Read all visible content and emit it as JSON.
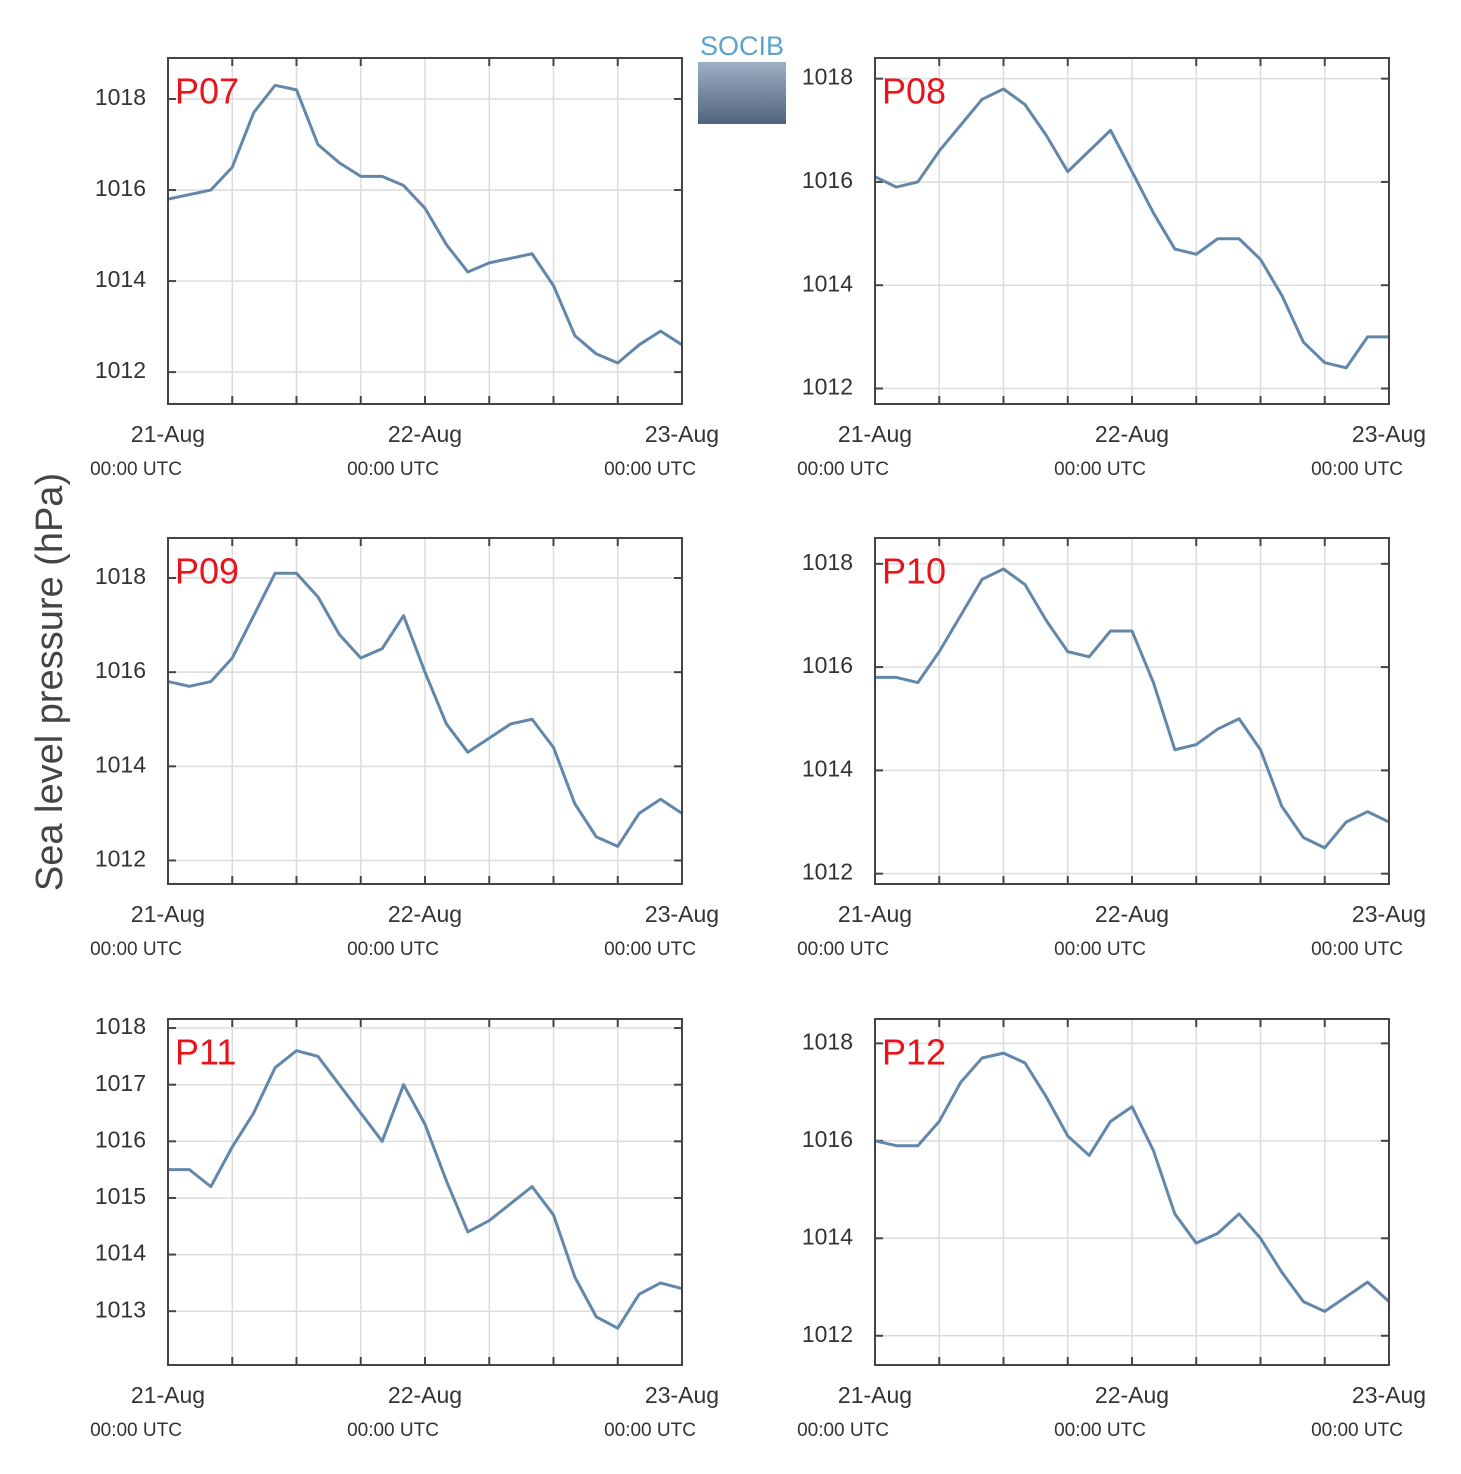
{
  "logo": "SOCIB",
  "chart_data": [
    {
      "type": "line",
      "title": "P07",
      "color": "#6387ab",
      "title_color": "#e8141c",
      "grid": true,
      "x": [
        "21-Aug 00:00",
        "21-Aug 02:00",
        "21-Aug 04:00",
        "21-Aug 06:00",
        "21-Aug 08:00",
        "21-Aug 10:00",
        "21-Aug 12:00",
        "21-Aug 14:00",
        "21-Aug 16:00",
        "21-Aug 18:00",
        "21-Aug 20:00",
        "21-Aug 22:00",
        "22-Aug 00:00",
        "22-Aug 02:00",
        "22-Aug 04:00",
        "22-Aug 06:00",
        "22-Aug 08:00",
        "22-Aug 10:00",
        "22-Aug 12:00",
        "22-Aug 14:00",
        "22-Aug 16:00",
        "22-Aug 18:00",
        "22-Aug 20:00",
        "22-Aug 22:00",
        "23-Aug 00:00"
      ],
      "values": [
        1015.8,
        1015.9,
        1016.0,
        1016.5,
        1017.7,
        1018.3,
        1018.2,
        1017.0,
        1016.6,
        1016.3,
        1016.3,
        1016.1,
        1015.6,
        1014.8,
        1014.2,
        1014.4,
        1014.5,
        1014.6,
        1013.9,
        1012.8,
        1012.4,
        1012.2,
        1012.6,
        1012.9,
        1012.6
      ],
      "xlim": [
        "21-Aug 00:00",
        "23-Aug 00:00"
      ],
      "xticks": [
        {
          "value": "21-Aug 00:00",
          "label": "21-Aug",
          "sublabel": "00:00 UTC"
        },
        {
          "value": "22-Aug 00:00",
          "label": "22-Aug",
          "sublabel": "00:00 UTC"
        },
        {
          "value": "23-Aug 00:00",
          "label": "23-Aug",
          "sublabel": "00:00 UTC"
        }
      ],
      "xminorticks": [
        "21-Aug 06:00",
        "21-Aug 12:00",
        "21-Aug 18:00",
        "22-Aug 06:00",
        "22-Aug 12:00",
        "22-Aug 18:00"
      ],
      "ylim": [
        1011.3,
        1018.9
      ],
      "yticks": [
        1012,
        1014,
        1016,
        1018
      ]
    },
    {
      "type": "line",
      "title": "P08",
      "color": "#6387ab",
      "title_color": "#e8141c",
      "grid": true,
      "x": [
        "21-Aug 00:00",
        "21-Aug 02:00",
        "21-Aug 04:00",
        "21-Aug 06:00",
        "21-Aug 08:00",
        "21-Aug 10:00",
        "21-Aug 12:00",
        "21-Aug 14:00",
        "21-Aug 16:00",
        "21-Aug 18:00",
        "21-Aug 20:00",
        "21-Aug 22:00",
        "22-Aug 00:00",
        "22-Aug 02:00",
        "22-Aug 04:00",
        "22-Aug 06:00",
        "22-Aug 08:00",
        "22-Aug 10:00",
        "22-Aug 12:00",
        "22-Aug 14:00",
        "22-Aug 16:00",
        "22-Aug 18:00",
        "22-Aug 20:00",
        "22-Aug 22:00",
        "23-Aug 00:00"
      ],
      "values": [
        1016.1,
        1015.9,
        1016.0,
        1016.6,
        1017.1,
        1017.6,
        1017.8,
        1017.5,
        1016.9,
        1016.2,
        1016.6,
        1017.0,
        1016.2,
        1015.4,
        1014.7,
        1014.6,
        1014.9,
        1014.9,
        1014.5,
        1013.8,
        1012.9,
        1012.5,
        1012.4,
        1013.0,
        1013.0
      ],
      "xlim": [
        "21-Aug 00:00",
        "23-Aug 00:00"
      ],
      "xticks": [
        {
          "value": "21-Aug 00:00",
          "label": "21-Aug",
          "sublabel": "00:00 UTC"
        },
        {
          "value": "22-Aug 00:00",
          "label": "22-Aug",
          "sublabel": "00:00 UTC"
        },
        {
          "value": "23-Aug 00:00",
          "label": "23-Aug",
          "sublabel": "00:00 UTC"
        }
      ],
      "xminorticks": [
        "21-Aug 06:00",
        "21-Aug 12:00",
        "21-Aug 18:00",
        "22-Aug 06:00",
        "22-Aug 12:00",
        "22-Aug 18:00"
      ],
      "ylim": [
        1011.7,
        1018.4
      ],
      "yticks": [
        1012,
        1014,
        1016,
        1018
      ]
    },
    {
      "type": "line",
      "title": "P09",
      "color": "#6387ab",
      "title_color": "#e8141c",
      "grid": true,
      "ylabel": "Sea level pressure (hPa)",
      "x": [
        "21-Aug 00:00",
        "21-Aug 02:00",
        "21-Aug 04:00",
        "21-Aug 06:00",
        "21-Aug 08:00",
        "21-Aug 10:00",
        "21-Aug 12:00",
        "21-Aug 14:00",
        "21-Aug 16:00",
        "21-Aug 18:00",
        "21-Aug 20:00",
        "21-Aug 22:00",
        "22-Aug 00:00",
        "22-Aug 02:00",
        "22-Aug 04:00",
        "22-Aug 06:00",
        "22-Aug 08:00",
        "22-Aug 10:00",
        "22-Aug 12:00",
        "22-Aug 14:00",
        "22-Aug 16:00",
        "22-Aug 18:00",
        "22-Aug 20:00",
        "22-Aug 22:00",
        "23-Aug 00:00"
      ],
      "values": [
        1015.8,
        1015.7,
        1015.8,
        1016.3,
        1017.2,
        1018.1,
        1018.1,
        1017.6,
        1016.8,
        1016.3,
        1016.5,
        1017.2,
        1016.0,
        1014.9,
        1014.3,
        1014.6,
        1014.9,
        1015.0,
        1014.4,
        1013.2,
        1012.5,
        1012.3,
        1013.0,
        1013.3,
        1013.0
      ],
      "xlim": [
        "21-Aug 00:00",
        "23-Aug 00:00"
      ],
      "xticks": [
        {
          "value": "21-Aug 00:00",
          "label": "21-Aug",
          "sublabel": "00:00 UTC"
        },
        {
          "value": "22-Aug 00:00",
          "label": "22-Aug",
          "sublabel": "00:00 UTC"
        },
        {
          "value": "23-Aug 00:00",
          "label": "23-Aug",
          "sublabel": "00:00 UTC"
        }
      ],
      "xminorticks": [
        "21-Aug 06:00",
        "21-Aug 12:00",
        "21-Aug 18:00",
        "22-Aug 06:00",
        "22-Aug 12:00",
        "22-Aug 18:00"
      ],
      "ylim": [
        1011.5,
        1018.85
      ],
      "yticks": [
        1012,
        1014,
        1016,
        1018
      ]
    },
    {
      "type": "line",
      "title": "P10",
      "color": "#6387ab",
      "title_color": "#e8141c",
      "grid": true,
      "x": [
        "21-Aug 00:00",
        "21-Aug 02:00",
        "21-Aug 04:00",
        "21-Aug 06:00",
        "21-Aug 08:00",
        "21-Aug 10:00",
        "21-Aug 12:00",
        "21-Aug 14:00",
        "21-Aug 16:00",
        "21-Aug 18:00",
        "21-Aug 20:00",
        "21-Aug 22:00",
        "22-Aug 00:00",
        "22-Aug 02:00",
        "22-Aug 04:00",
        "22-Aug 06:00",
        "22-Aug 08:00",
        "22-Aug 10:00",
        "22-Aug 12:00",
        "22-Aug 14:00",
        "22-Aug 16:00",
        "22-Aug 18:00",
        "22-Aug 20:00",
        "22-Aug 22:00",
        "23-Aug 00:00"
      ],
      "values": [
        1015.8,
        1015.8,
        1015.7,
        1016.3,
        1017.0,
        1017.7,
        1017.9,
        1017.6,
        1016.9,
        1016.3,
        1016.2,
        1016.7,
        1016.7,
        1015.7,
        1014.4,
        1014.5,
        1014.8,
        1015.0,
        1014.4,
        1013.3,
        1012.7,
        1012.5,
        1013.0,
        1013.2,
        1013.0
      ],
      "xlim": [
        "21-Aug 00:00",
        "23-Aug 00:00"
      ],
      "xticks": [
        {
          "value": "21-Aug 00:00",
          "label": "21-Aug",
          "sublabel": "00:00 UTC"
        },
        {
          "value": "22-Aug 00:00",
          "label": "22-Aug",
          "sublabel": "00:00 UTC"
        },
        {
          "value": "23-Aug 00:00",
          "label": "23-Aug",
          "sublabel": "00:00 UTC"
        }
      ],
      "xminorticks": [
        "21-Aug 06:00",
        "21-Aug 12:00",
        "21-Aug 18:00",
        "22-Aug 06:00",
        "22-Aug 12:00",
        "22-Aug 18:00"
      ],
      "ylim": [
        1011.8,
        1018.5
      ],
      "yticks": [
        1012,
        1014,
        1016,
        1018
      ]
    },
    {
      "type": "line",
      "title": "P11",
      "color": "#6387ab",
      "title_color": "#e8141c",
      "grid": true,
      "x": [
        "21-Aug 00:00",
        "21-Aug 02:00",
        "21-Aug 04:00",
        "21-Aug 06:00",
        "21-Aug 08:00",
        "21-Aug 10:00",
        "21-Aug 12:00",
        "21-Aug 14:00",
        "21-Aug 16:00",
        "21-Aug 18:00",
        "21-Aug 20:00",
        "21-Aug 22:00",
        "22-Aug 00:00",
        "22-Aug 02:00",
        "22-Aug 04:00",
        "22-Aug 06:00",
        "22-Aug 08:00",
        "22-Aug 10:00",
        "22-Aug 12:00",
        "22-Aug 14:00",
        "22-Aug 16:00",
        "22-Aug 18:00",
        "22-Aug 20:00",
        "22-Aug 22:00",
        "23-Aug 00:00"
      ],
      "values": [
        1015.5,
        1015.5,
        1015.2,
        1015.9,
        1016.5,
        1017.3,
        1017.6,
        1017.5,
        1017.0,
        1016.5,
        1016.0,
        1017.0,
        1016.3,
        1015.3,
        1014.4,
        1014.6,
        1014.9,
        1015.2,
        1014.7,
        1013.6,
        1012.9,
        1012.7,
        1013.3,
        1013.5,
        1013.4
      ],
      "xlim": [
        "21-Aug 00:00",
        "23-Aug 00:00"
      ],
      "xticks": [
        {
          "value": "21-Aug 00:00",
          "label": "21-Aug",
          "sublabel": "00:00 UTC"
        },
        {
          "value": "22-Aug 00:00",
          "label": "22-Aug",
          "sublabel": "00:00 UTC"
        },
        {
          "value": "23-Aug 00:00",
          "label": "23-Aug",
          "sublabel": "00:00 UTC"
        }
      ],
      "xminorticks": [
        "21-Aug 06:00",
        "21-Aug 12:00",
        "21-Aug 18:00",
        "22-Aug 06:00",
        "22-Aug 12:00",
        "22-Aug 18:00"
      ],
      "ylim": [
        1012.05,
        1018.16
      ],
      "yticks": [
        1013,
        1014,
        1015,
        1016,
        1017,
        1018
      ]
    },
    {
      "type": "line",
      "title": "P12",
      "color": "#6387ab",
      "title_color": "#e8141c",
      "grid": true,
      "x": [
        "21-Aug 00:00",
        "21-Aug 02:00",
        "21-Aug 04:00",
        "21-Aug 06:00",
        "21-Aug 08:00",
        "21-Aug 10:00",
        "21-Aug 12:00",
        "21-Aug 14:00",
        "21-Aug 16:00",
        "21-Aug 18:00",
        "21-Aug 20:00",
        "21-Aug 22:00",
        "22-Aug 00:00",
        "22-Aug 02:00",
        "22-Aug 04:00",
        "22-Aug 06:00",
        "22-Aug 08:00",
        "22-Aug 10:00",
        "22-Aug 12:00",
        "22-Aug 14:00",
        "22-Aug 16:00",
        "22-Aug 18:00",
        "22-Aug 20:00",
        "22-Aug 22:00",
        "23-Aug 00:00"
      ],
      "values": [
        1016.0,
        1015.9,
        1015.9,
        1016.4,
        1017.2,
        1017.7,
        1017.8,
        1017.6,
        1016.9,
        1016.1,
        1015.7,
        1016.4,
        1016.7,
        1015.8,
        1014.5,
        1013.9,
        1014.1,
        1014.5,
        1014.0,
        1013.3,
        1012.7,
        1012.5,
        1012.8,
        1013.1,
        1012.7
      ],
      "xlim": [
        "21-Aug 00:00",
        "23-Aug 00:00"
      ],
      "xticks": [
        {
          "value": "21-Aug 00:00",
          "label": "21-Aug",
          "sublabel": "00:00 UTC"
        },
        {
          "value": "22-Aug 00:00",
          "label": "22-Aug",
          "sublabel": "00:00 UTC"
        },
        {
          "value": "23-Aug 00:00",
          "label": "23-Aug",
          "sublabel": "00:00 UTC"
        }
      ],
      "xminorticks": [
        "21-Aug 06:00",
        "21-Aug 12:00",
        "21-Aug 18:00",
        "22-Aug 06:00",
        "22-Aug 12:00",
        "22-Aug 18:00"
      ],
      "ylim": [
        1011.4,
        1018.5
      ],
      "yticks": [
        1012,
        1014,
        1016,
        1018
      ]
    }
  ]
}
